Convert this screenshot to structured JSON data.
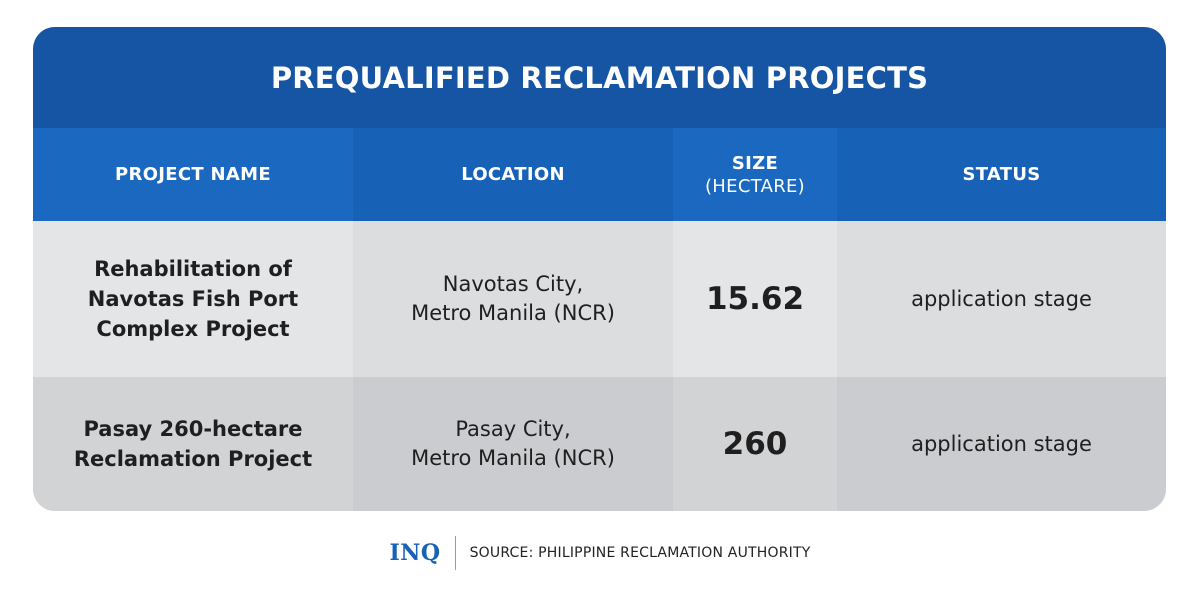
{
  "title": "PREQUALIFIED RECLAMATION PROJECTS",
  "columns": [
    {
      "label": "PROJECT NAME",
      "sub": ""
    },
    {
      "label": "LOCATION",
      "sub": ""
    },
    {
      "label": "SIZE",
      "sub": "(HECTARE)"
    },
    {
      "label": "STATUS",
      "sub": ""
    }
  ],
  "rows": [
    {
      "name_lines": [
        "Rehabilitation of",
        "Navotas Fish Port",
        "Complex Project"
      ],
      "location_lines": [
        "Navotas City,",
        "Metro Manila (NCR)"
      ],
      "size": "15.62",
      "status": "application stage"
    },
    {
      "name_lines": [
        "Pasay 260-hectare",
        "Reclamation Project"
      ],
      "location_lines": [
        "Pasay City,",
        "Metro Manila (NCR)"
      ],
      "size": "260",
      "status": "application stage"
    }
  ],
  "footer": {
    "logo": "INQ",
    "source": "SOURCE: PHILIPPINE RECLAMATION AUTHORITY"
  },
  "colors": {
    "title_bg": "#1555a3",
    "header_bg": "#1a68bf",
    "logo": "#1762b6"
  }
}
